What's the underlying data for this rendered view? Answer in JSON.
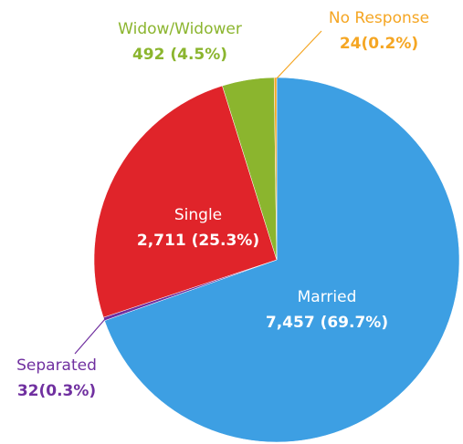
{
  "chart_data": {
    "type": "pie",
    "categories": [
      "Married",
      "Separated",
      "Single",
      "Widow/Widower",
      "No Response"
    ],
    "values": [
      7457,
      32,
      2711,
      492,
      24
    ],
    "value_labels": [
      "7,457 (69.7%)",
      "32(0.3%)",
      "2,711 (25.3%)",
      "492 (4.5%)",
      "24(0.2%)"
    ],
    "colors": [
      "#3d9fe3",
      "#7030a0",
      "#e0242a",
      "#8bb52e",
      "#f5a623"
    ]
  }
}
